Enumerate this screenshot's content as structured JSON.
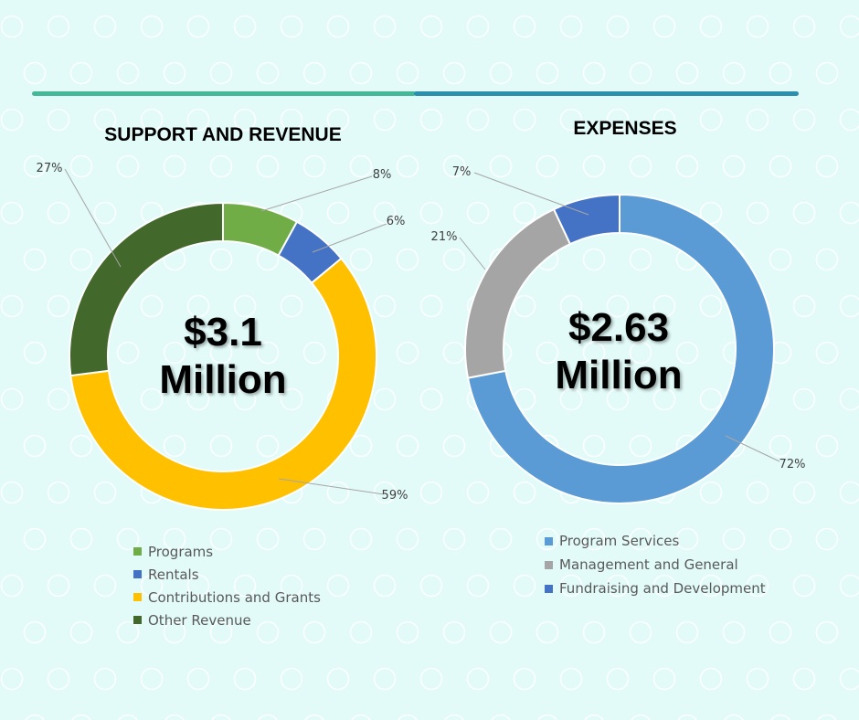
{
  "colors": {
    "background": "#e2fbf8",
    "divider_left": "#43b99a",
    "divider_right": "#2b8fae"
  },
  "chart_data": [
    {
      "type": "donut",
      "title": "SUPPORT AND REVENUE",
      "center_label": [
        "$3.1",
        "Million"
      ],
      "legend_position": "bottom",
      "slices": [
        {
          "label": "Programs",
          "value": 8,
          "data_label": "8%",
          "color": "#70ad47"
        },
        {
          "label": "Rentals",
          "value": 6,
          "data_label": "6%",
          "color": "#4472c4"
        },
        {
          "label": "Contributions and Grants",
          "value": 59,
          "data_label": "59%",
          "color": "#ffc000"
        },
        {
          "label": "Other Revenue",
          "value": 27,
          "data_label": "27%",
          "color": "#43682b"
        }
      ]
    },
    {
      "type": "donut",
      "title": "EXPENSES",
      "center_label": [
        "$2.63",
        "Million"
      ],
      "legend_position": "bottom",
      "slices": [
        {
          "label": "Program Services",
          "value": 72,
          "data_label": "72%",
          "color": "#5b9bd5"
        },
        {
          "label": "Management and General",
          "value": 21,
          "data_label": "21%",
          "color": "#a5a5a5"
        },
        {
          "label": "Fundraising and Development",
          "value": 7,
          "data_label": "7%",
          "color": "#4472c4"
        }
      ]
    }
  ]
}
